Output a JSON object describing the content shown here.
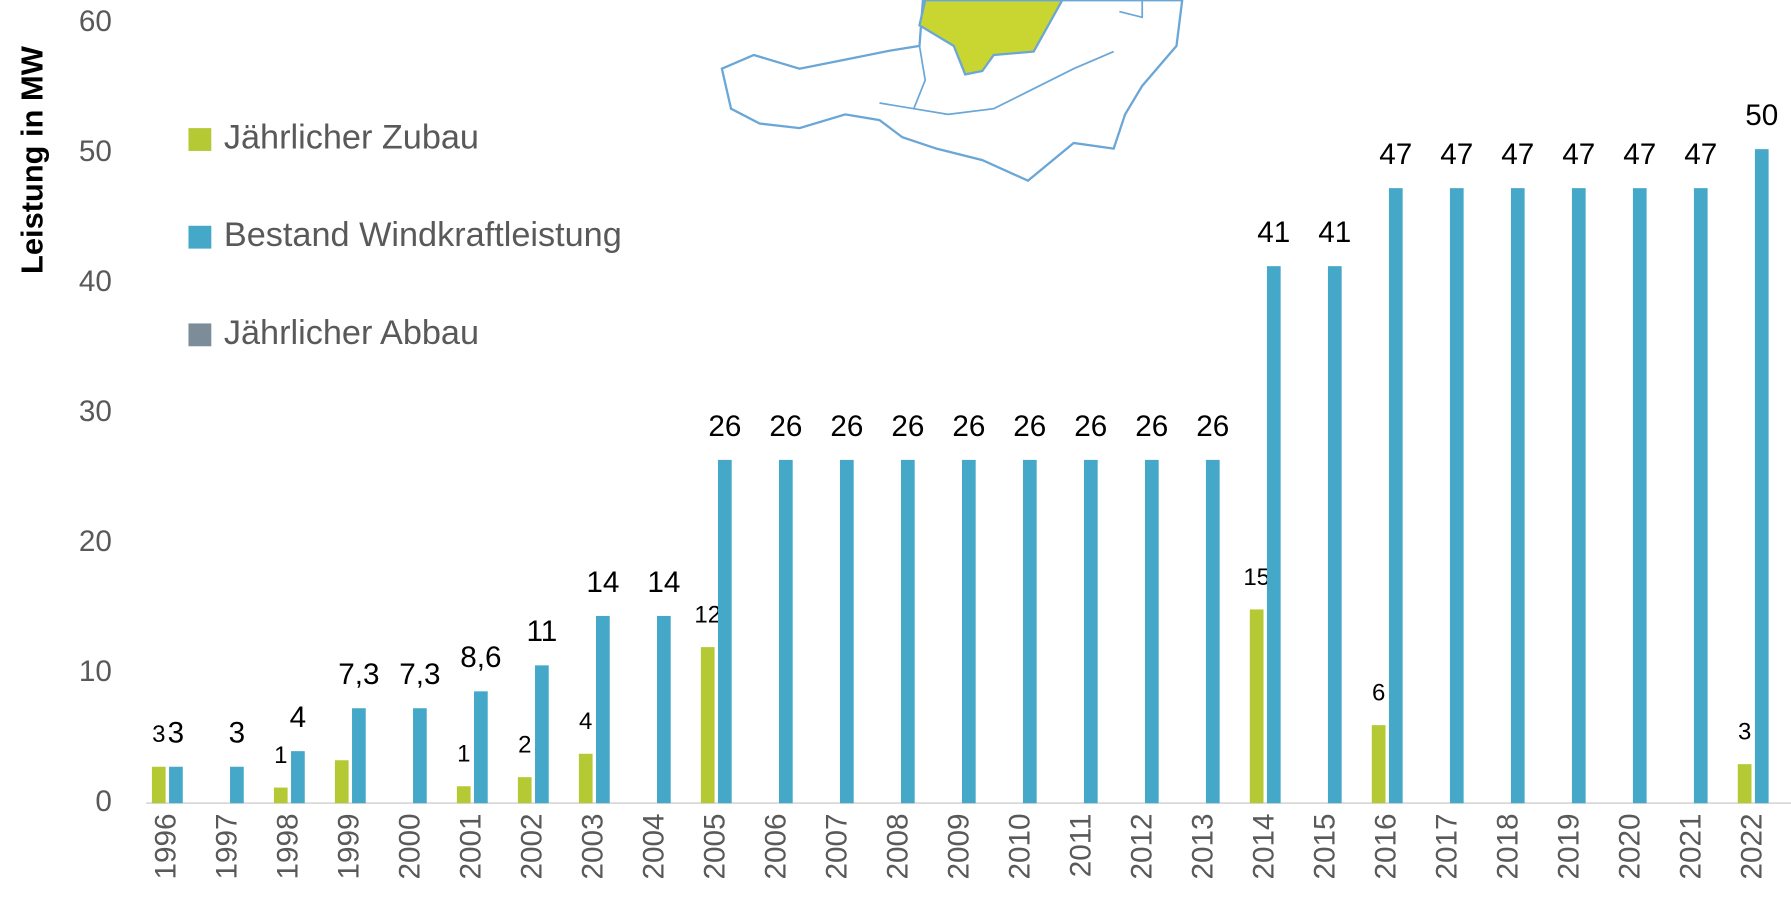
{
  "chart_data": {
    "type": "bar",
    "ylabel": "Leistung in MW",
    "categories": [
      "1996",
      "1997",
      "1998",
      "1999",
      "2000",
      "2001",
      "2002",
      "2003",
      "2004",
      "2005",
      "2006",
      "2007",
      "2008",
      "2009",
      "2010",
      "2011",
      "2012",
      "2013",
      "2014",
      "2015",
      "2016",
      "2017",
      "2018",
      "2019",
      "2020",
      "2021",
      "2022"
    ],
    "series": [
      {
        "name": "Jährlicher Zubau",
        "color": "#b5c934",
        "values": [
          2.8,
          null,
          1.2,
          3.3,
          null,
          1.3,
          2,
          3.8,
          null,
          12,
          null,
          null,
          null,
          null,
          null,
          null,
          null,
          null,
          14.9,
          null,
          6,
          null,
          null,
          null,
          null,
          null,
          3
        ],
        "value_labels": [
          "3",
          null,
          "1",
          null,
          null,
          "1",
          "2",
          "4",
          null,
          "12",
          null,
          null,
          null,
          null,
          null,
          null,
          null,
          null,
          "15",
          null,
          "6",
          null,
          null,
          null,
          null,
          null,
          "3"
        ]
      },
      {
        "name": "Bestand Windkraftleistung",
        "color": "#45a8c9",
        "values": [
          2.8,
          2.8,
          4,
          7.3,
          7.3,
          8.6,
          10.6,
          14.4,
          14.4,
          26.4,
          26.4,
          26.4,
          26.4,
          26.4,
          26.4,
          26.4,
          26.4,
          26.4,
          41.3,
          41.3,
          47.3,
          47.3,
          47.3,
          47.3,
          47.3,
          47.3,
          50.3
        ],
        "value_labels": [
          "3",
          "3",
          "4",
          "7,3",
          "7,3",
          "8,6",
          "11",
          "14",
          "14",
          "26",
          "26",
          "26",
          "26",
          "26",
          "26",
          "26",
          "26",
          "26",
          "41",
          "41",
          "47",
          "47",
          "47",
          "47",
          "47",
          "47",
          "50"
        ]
      },
      {
        "name": "Jährlicher Abbau",
        "color": "#7d8c99",
        "values": [
          null,
          null,
          null,
          null,
          null,
          null,
          null,
          null,
          null,
          null,
          null,
          null,
          null,
          null,
          null,
          null,
          null,
          null,
          null,
          null,
          null,
          null,
          null,
          null,
          null,
          null,
          null
        ]
      }
    ],
    "ylim": [
      0,
      60
    ],
    "yticks": [
      0,
      10,
      20,
      30,
      40,
      50,
      60
    ],
    "legend": "upper left"
  }
}
